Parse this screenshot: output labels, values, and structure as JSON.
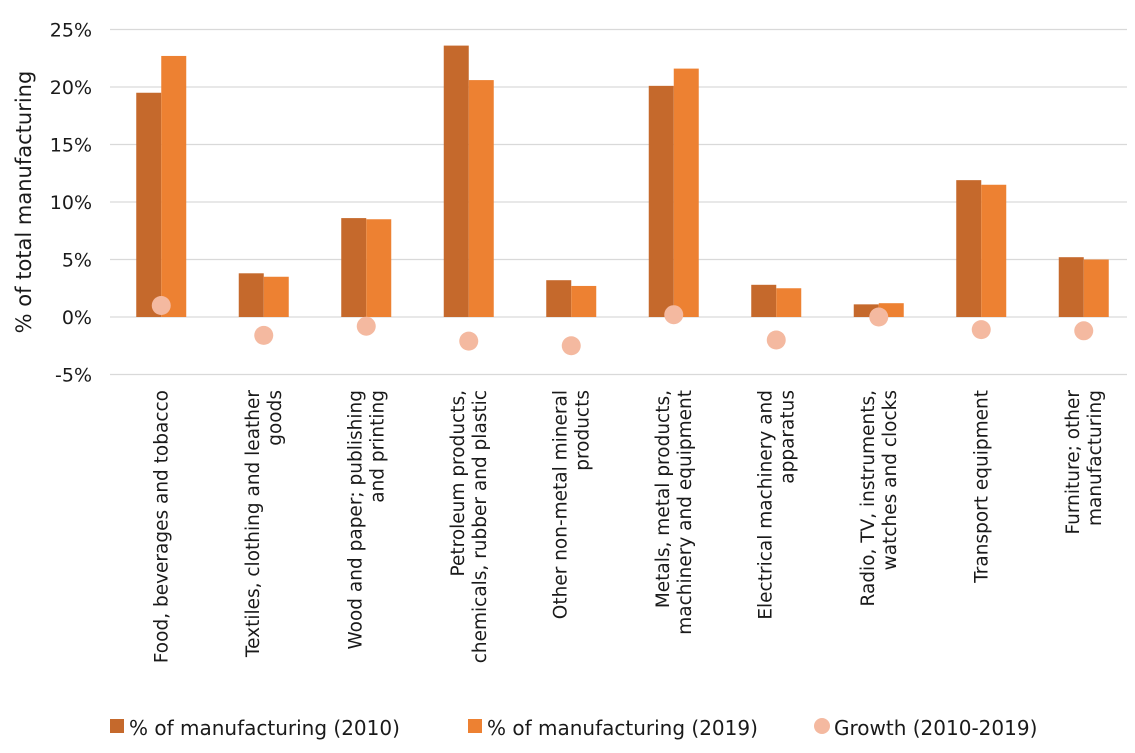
{
  "chart_data": {
    "type": "bar",
    "title": "",
    "xlabel": "",
    "ylabel": "% of total manufacturing",
    "ylim": [
      -5,
      25
    ],
    "yticks": [
      -5,
      0,
      5,
      10,
      15,
      20,
      25
    ],
    "ytick_labels": [
      "-5%",
      "0%",
      "5%",
      "10%",
      "15%",
      "20%",
      "25%"
    ],
    "grid": true,
    "legend_position": "bottom",
    "categories": [
      [
        "Food, beverages and tobacco"
      ],
      [
        "Textiles, clothing and leather",
        "goods"
      ],
      [
        "Wood and paper; publishing",
        "and printing"
      ],
      [
        "Petroleum products,",
        "chemicals, rubber and plastic"
      ],
      [
        "Other non-metal mineral",
        "products"
      ],
      [
        "Metals, metal products,",
        "machinery and equipment"
      ],
      [
        "Electrical machinery and",
        "apparatus"
      ],
      [
        "Radio, TV, instruments,",
        "watches and clocks"
      ],
      [
        "Transport equipment"
      ],
      [
        "Furniture; other",
        "manufacturing"
      ]
    ],
    "series": [
      {
        "name": "% of manufacturing (2010)",
        "kind": "bar",
        "color": "#C5692C",
        "values": [
          19.5,
          3.8,
          8.6,
          23.6,
          3.2,
          20.1,
          2.8,
          1.1,
          11.9,
          5.2
        ]
      },
      {
        "name": "% of manufacturing (2019)",
        "kind": "bar",
        "color": "#ED8132",
        "values": [
          22.7,
          3.5,
          8.5,
          20.6,
          2.7,
          21.6,
          2.5,
          1.2,
          11.5,
          5.0
        ]
      },
      {
        "name": "Growth (2010-2019)",
        "kind": "marker",
        "color": "#F4B9A0",
        "values": [
          1.0,
          -1.6,
          -0.8,
          -2.1,
          -2.5,
          0.2,
          -2.0,
          0.0,
          -1.1,
          -1.2
        ]
      }
    ]
  }
}
